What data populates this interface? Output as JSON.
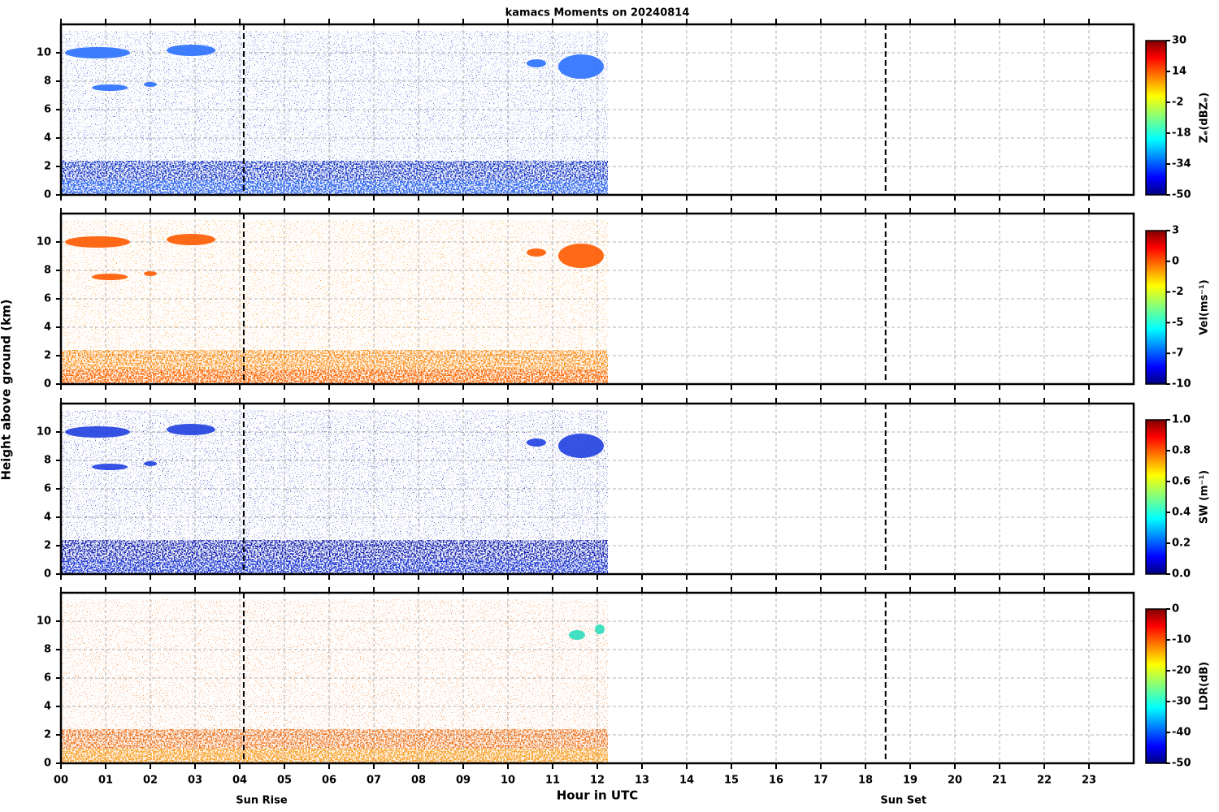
{
  "chart_data": [
    {
      "type": "heatmap",
      "title": "kamacs Moments on 20240814",
      "ylabel": "Height above ground (km)",
      "ylim": [
        0,
        12
      ],
      "yticks": [
        0,
        2,
        4,
        6,
        8,
        10
      ],
      "colorbar": {
        "label": "Zₑ(dBZₑ)",
        "clim": [
          -50,
          30
        ],
        "ticks": [
          30,
          14,
          -2,
          -18,
          -34,
          -50
        ]
      }
    },
    {
      "type": "heatmap",
      "ylim": [
        0,
        12
      ],
      "yticks": [
        0,
        2,
        4,
        6,
        8,
        10
      ],
      "colorbar": {
        "label": "Vel(ms⁻¹)",
        "clim": [
          -10,
          3
        ],
        "ticks": [
          3,
          {
            "value": 0.4,
            "label": "0"
          },
          {
            "value": -2.2,
            "label": "-2"
          },
          {
            "value": -4.8,
            "label": "-5"
          },
          {
            "value": -7.4,
            "label": "-7"
          },
          -10
        ]
      }
    },
    {
      "type": "heatmap",
      "ylim": [
        0,
        12
      ],
      "yticks": [
        0,
        2,
        4,
        6,
        8,
        10
      ],
      "colorbar": {
        "label": "SW (m⁻¹)",
        "clim": [
          0,
          1
        ],
        "ticks": [
          {
            "value": 1,
            "label": "1.0"
          },
          0.8,
          0.6,
          0.4,
          0.2,
          {
            "value": 0,
            "label": "0.0"
          }
        ]
      }
    },
    {
      "type": "heatmap",
      "xlabel": "Hour in UTC",
      "xlim": [
        0,
        24
      ],
      "xticks": [
        {
          "value": 0,
          "label": "00"
        },
        {
          "value": 1,
          "label": "01"
        },
        {
          "value": 2,
          "label": "02"
        },
        {
          "value": 3,
          "label": "03"
        },
        {
          "value": 4,
          "label": "04"
        },
        {
          "value": 5,
          "label": "05"
        },
        {
          "value": 6,
          "label": "06"
        },
        {
          "value": 7,
          "label": "07"
        },
        {
          "value": 8,
          "label": "08"
        },
        {
          "value": 9,
          "label": "09"
        },
        {
          "value": 10,
          "label": "10"
        },
        {
          "value": 11,
          "label": "11"
        },
        {
          "value": 12,
          "label": "12"
        },
        {
          "value": 13,
          "label": "13"
        },
        {
          "value": 14,
          "label": "14"
        },
        {
          "value": 15,
          "label": "15"
        },
        {
          "value": 16,
          "label": "16"
        },
        {
          "value": 17,
          "label": "17"
        },
        {
          "value": 18,
          "label": "18"
        },
        {
          "value": 19,
          "label": "19"
        },
        {
          "value": 20,
          "label": "20"
        },
        {
          "value": 21,
          "label": "21"
        },
        {
          "value": 22,
          "label": "22"
        },
        {
          "value": 23,
          "label": "23"
        }
      ],
      "vlines": [
        {
          "x": 4.09,
          "label": "Sun Rise"
        },
        {
          "x": 18.45,
          "label": "Sun Set"
        }
      ],
      "ylim": [
        0,
        12
      ],
      "yticks": [
        0,
        2,
        4,
        6,
        8,
        10
      ],
      "colorbar": {
        "label": "LDR(dB)",
        "clim": [
          -50,
          0
        ],
        "ticks": [
          0,
          -10,
          -20,
          -30,
          -40,
          -50
        ]
      }
    }
  ]
}
